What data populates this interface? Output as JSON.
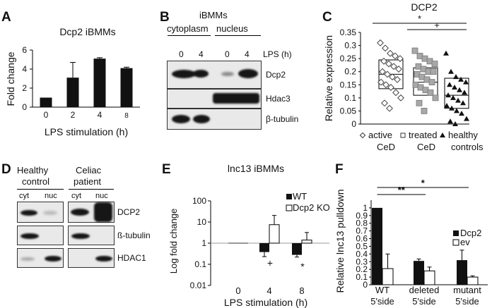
{
  "panels": {
    "A": "A",
    "B": "B",
    "C": "C",
    "D": "D",
    "E": "E",
    "F": "F"
  },
  "panelB": {
    "title": "iBMMs",
    "col_cytoplasm": "cytoplasm",
    "col_nucleus": "nucleus",
    "lps_label": "LPS (h)",
    "lanes": [
      "0",
      "4",
      "0",
      "4"
    ],
    "rows": [
      "Dcp2",
      "Hdac3",
      "β-tubulin"
    ]
  },
  "panelD": {
    "group1": "Healthy",
    "group1b": "control",
    "group2": "Celiac",
    "group2b": "patient",
    "lanes": [
      "cyt",
      "nuc",
      "cyt",
      "nuc"
    ],
    "rows": [
      "DCP2",
      "ß-tubulin",
      "HDAC1"
    ]
  },
  "chart_data": [
    {
      "panel": "A",
      "type": "bar",
      "title": "Dcp2 iBMMs",
      "ylabel": "Fold change",
      "xlabel": "LPS stimulation (h)",
      "categories": [
        "0",
        "2",
        "4",
        "8"
      ],
      "values": [
        1.0,
        3.1,
        5.1,
        4.1
      ],
      "errors": [
        0.0,
        1.6,
        0.1,
        0.1
      ],
      "ylim": [
        0,
        6
      ],
      "yticks": [
        "0",
        "2",
        "4",
        "6"
      ]
    },
    {
      "panel": "C",
      "type": "scatter",
      "title": "DCP2",
      "ylabel": "Relative expression",
      "categories": [
        "active CeD",
        "treated CeD",
        "healthy controls"
      ],
      "cat_line1": [
        "active",
        "treated",
        "healthy"
      ],
      "cat_line2": [
        "CeD",
        "CeD",
        "controls"
      ],
      "ylim": [
        0,
        0.35
      ],
      "yticks": [
        "0",
        "0.05",
        "0.1",
        "0.15",
        "0.2",
        "0.25",
        "0.3",
        "0.35"
      ],
      "series": [
        {
          "values": [
            0.31,
            0.29,
            0.27,
            0.26,
            0.25,
            0.24,
            0.23,
            0.22,
            0.21,
            0.2,
            0.19,
            0.18,
            0.17,
            0.16,
            0.15,
            0.14,
            0.12,
            0.1,
            0.08,
            0.06
          ]
        },
        {
          "values": [
            0.28,
            0.26,
            0.25,
            0.24,
            0.23,
            0.22,
            0.21,
            0.2,
            0.2,
            0.19,
            0.18,
            0.17,
            0.16,
            0.15,
            0.14,
            0.13,
            0.12,
            0.1,
            0.08,
            0.05
          ]
        },
        {
          "values": [
            0.27,
            0.2,
            0.18,
            0.17,
            0.16,
            0.15,
            0.14,
            0.13,
            0.12,
            0.11,
            0.1,
            0.09,
            0.08,
            0.07,
            0.06,
            0.05,
            0.04,
            0.02,
            0.01,
            0.0
          ]
        }
      ],
      "box_q1": [
        0.135,
        0.11,
        0.06
      ],
      "box_median": [
        0.19,
        0.16,
        0.11
      ],
      "box_q3": [
        0.245,
        0.215,
        0.175
      ],
      "significance": [
        {
          "from": 0,
          "to": 2,
          "label": "*"
        },
        {
          "from": 1,
          "to": 2,
          "label": "+"
        }
      ]
    },
    {
      "panel": "E",
      "type": "bar",
      "title": "lnc13 iBMMs",
      "ylabel": "Log fold change",
      "xlabel": "LPS stimulation (h)",
      "yscale": "log",
      "categories": [
        "0",
        "4",
        "8"
      ],
      "ylim": [
        0.01,
        100
      ],
      "yticks": [
        "0.01",
        "0.1",
        "1",
        "10",
        "100"
      ],
      "series": [
        {
          "name": "WT",
          "values": [
            1.0,
            0.38,
            0.28
          ],
          "errors_low": [
            0,
            0.15,
            0.06
          ],
          "errors_high": [
            0,
            0,
            0
          ]
        },
        {
          "name": "Dcp2 KO",
          "values": [
            1.0,
            7.5,
            1.4
          ],
          "errors_low": [
            0,
            0,
            0
          ],
          "errors_high": [
            0,
            13.0,
            1.8
          ]
        }
      ],
      "annotations": [
        {
          "category": "4",
          "label": "+"
        },
        {
          "category": "8",
          "label": "*"
        }
      ]
    },
    {
      "panel": "F",
      "type": "bar",
      "ylabel": "Relative lnc13  pulldown",
      "categories": [
        "WT 5'side",
        "deleted 5'side",
        "mutant 5'side"
      ],
      "cat_line1": [
        "WT",
        "deleted",
        "mutant"
      ],
      "cat_line2": [
        "5'side",
        "5'side",
        "5'side"
      ],
      "ylim": [
        0,
        1.1
      ],
      "yticks": [
        "0",
        "0.1",
        "0.2",
        "0.3",
        "0.4",
        "0.5",
        "0.6",
        "0.7",
        "0.8",
        "0.9",
        "1"
      ],
      "series": [
        {
          "name": "Dcp2",
          "values": [
            1.0,
            0.31,
            0.32
          ],
          "errors": [
            0,
            0.025,
            0.13
          ]
        },
        {
          "name": "ev",
          "values": [
            0.21,
            0.18,
            0.1
          ],
          "errors": [
            0.19,
            0.05,
            0.015
          ]
        }
      ],
      "significance": [
        {
          "from": 0,
          "to": 2,
          "label": "*"
        },
        {
          "from": 0,
          "to": 1,
          "label": "**"
        }
      ]
    }
  ]
}
